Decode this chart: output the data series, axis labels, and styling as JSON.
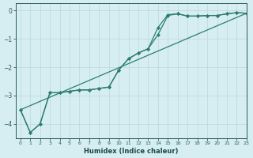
{
  "title": "",
  "xlabel": "Humidex (Indice chaleur)",
  "ylabel": "",
  "bg_color": "#d6eef2",
  "line_color": "#2e7d6e",
  "grid_color": "#b8d8de",
  "xlim": [
    -0.5,
    23
  ],
  "ylim": [
    -4.5,
    0.25
  ],
  "yticks": [
    0,
    -1,
    -2,
    -3,
    -4
  ],
  "xticks": [
    0,
    1,
    2,
    3,
    4,
    5,
    6,
    7,
    8,
    9,
    10,
    11,
    12,
    13,
    14,
    15,
    16,
    17,
    18,
    19,
    20,
    21,
    22,
    23
  ],
  "line1_x": [
    0,
    1,
    2,
    3,
    4,
    5,
    6,
    7,
    8,
    9,
    10,
    11,
    12,
    13,
    14,
    15,
    16,
    17,
    18,
    19,
    20,
    21,
    22,
    23
  ],
  "line1_y": [
    -3.5,
    -4.3,
    -4.0,
    -2.9,
    -2.9,
    -2.85,
    -2.8,
    -2.8,
    -2.75,
    -2.7,
    -2.1,
    -1.7,
    -1.5,
    -1.35,
    -0.6,
    -0.15,
    -0.12,
    -0.2,
    -0.2,
    -0.18,
    -0.18,
    -0.12,
    -0.08,
    -0.1
  ],
  "line2_x": [
    0,
    1,
    2,
    3,
    4,
    5,
    6,
    7,
    8,
    9,
    10,
    11,
    12,
    13,
    14,
    15,
    16,
    17,
    18,
    19,
    20,
    21,
    22,
    23
  ],
  "line2_y": [
    -3.5,
    -4.3,
    -4.0,
    -2.9,
    -2.9,
    -2.85,
    -2.8,
    -2.8,
    -2.75,
    -2.7,
    -2.1,
    -1.7,
    -1.5,
    -1.35,
    -0.85,
    -0.18,
    -0.12,
    -0.2,
    -0.2,
    -0.18,
    -0.18,
    -0.12,
    -0.08,
    -0.1
  ],
  "line3_x": [
    0,
    23
  ],
  "line3_y": [
    -3.5,
    -0.1
  ]
}
